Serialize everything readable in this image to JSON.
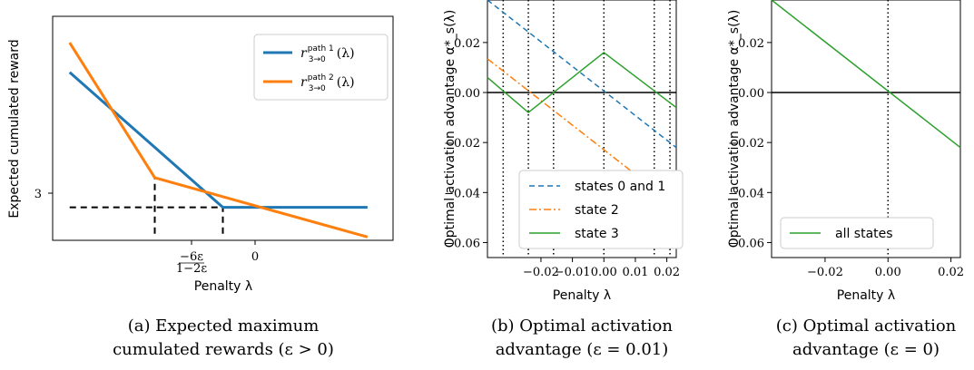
{
  "captions": {
    "a_line1": "(a) Expected maximum",
    "a_line2": "cumulated rewards (ε > 0)",
    "b_line1": "(b) Optimal activation",
    "b_line2": "advantage (ε = 0.01)",
    "c_line1": "(c) Optimal activation",
    "c_line2": "advantage (ε = 0)"
  },
  "chart_data": [
    {
      "type": "line",
      "xlabel": "Penalty λ",
      "ylabel": "Expected cumulated reward",
      "x_ticks": [
        "−6ε / (1−2ε)",
        "0"
      ],
      "y_ticks": [
        "3"
      ],
      "xlim": [
        -0.2,
        0.2
      ],
      "ylim": [
        2.5,
        5.9
      ],
      "series": [
        {
          "name": "r_{3→0}^{path 1}(λ)",
          "color": "#1f77b4",
          "x": [
            -0.18,
            0.0,
            0.17
          ],
          "y": [
            5.05,
            3.0,
            3.0
          ]
        },
        {
          "name": "r_{3→0}^{path 2}(λ)",
          "color": "#ff7f0e",
          "x": [
            -0.18,
            -0.08,
            0.17
          ],
          "y": [
            5.5,
            3.45,
            2.55
          ]
        }
      ],
      "reference_lines": [
        {
          "style": "dashed",
          "x": [
            -0.18,
            0.0
          ],
          "y": [
            3.0,
            3.0
          ]
        },
        {
          "style": "dashed",
          "x": [
            -0.08,
            -0.08
          ],
          "y": [
            2.6,
            3.45
          ]
        },
        {
          "style": "dashed",
          "x": [
            0.0,
            0.0
          ],
          "y": [
            2.6,
            3.0
          ]
        }
      ],
      "legend": "top-right"
    },
    {
      "type": "line",
      "xlabel": "Penalty λ",
      "ylabel": "Optimal activation advantage α*_s(λ)",
      "xlim": [
        -0.037,
        0.023
      ],
      "ylim": [
        -0.066,
        0.037
      ],
      "x_ticks": [
        -0.02,
        -0.01,
        0.0,
        0.01,
        0.02
      ],
      "x_tick_labels": [
        "−0.02",
        "−0.01",
        "0.00",
        "0.01",
        "0.02"
      ],
      "y_ticks": [
        0.02,
        0.0,
        -0.02,
        -0.04,
        -0.06
      ],
      "y_tick_labels": [
        "0.02",
        "0.00",
        "−0.02",
        "−0.04",
        "−0.06"
      ],
      "vlines": [
        -0.032,
        -0.024,
        -0.016,
        0.0,
        0.016,
        0.021
      ],
      "series": [
        {
          "name": "states 0 and 1",
          "color": "#1f77b4",
          "style": "dashed",
          "x": [
            -0.037,
            0.023
          ],
          "y": [
            0.037,
            -0.022
          ]
        },
        {
          "name": "state 2",
          "color": "#ff7f0e",
          "style": "dashdot",
          "x": [
            -0.037,
            0.023
          ],
          "y": [
            0.0135,
            -0.0455
          ]
        },
        {
          "name": "state 3",
          "color": "#2ca02c",
          "style": "solid",
          "x": [
            -0.037,
            -0.024,
            0.0,
            0.023
          ],
          "y": [
            0.006,
            -0.008,
            0.016,
            -0.006
          ]
        }
      ],
      "legend": "bottom-left"
    },
    {
      "type": "line",
      "xlabel": "Penalty λ",
      "ylabel": "Optimal activation advantage α*_s(λ)",
      "xlim": [
        -0.037,
        0.023
      ],
      "ylim": [
        -0.066,
        0.037
      ],
      "x_ticks": [
        -0.02,
        0.0,
        0.02
      ],
      "x_tick_labels": [
        "−0.02",
        "0.00",
        "0.02"
      ],
      "y_ticks": [
        0.02,
        0.0,
        -0.02,
        -0.04,
        -0.06
      ],
      "y_tick_labels": [
        "0.02",
        "0.00",
        "−0.02",
        "−0.04",
        "−0.06"
      ],
      "vlines": [
        0.0
      ],
      "series": [
        {
          "name": "all states",
          "color": "#2ca02c",
          "style": "solid",
          "x": [
            -0.037,
            0.023
          ],
          "y": [
            0.037,
            -0.022
          ]
        }
      ],
      "legend": "bottom-left"
    }
  ]
}
